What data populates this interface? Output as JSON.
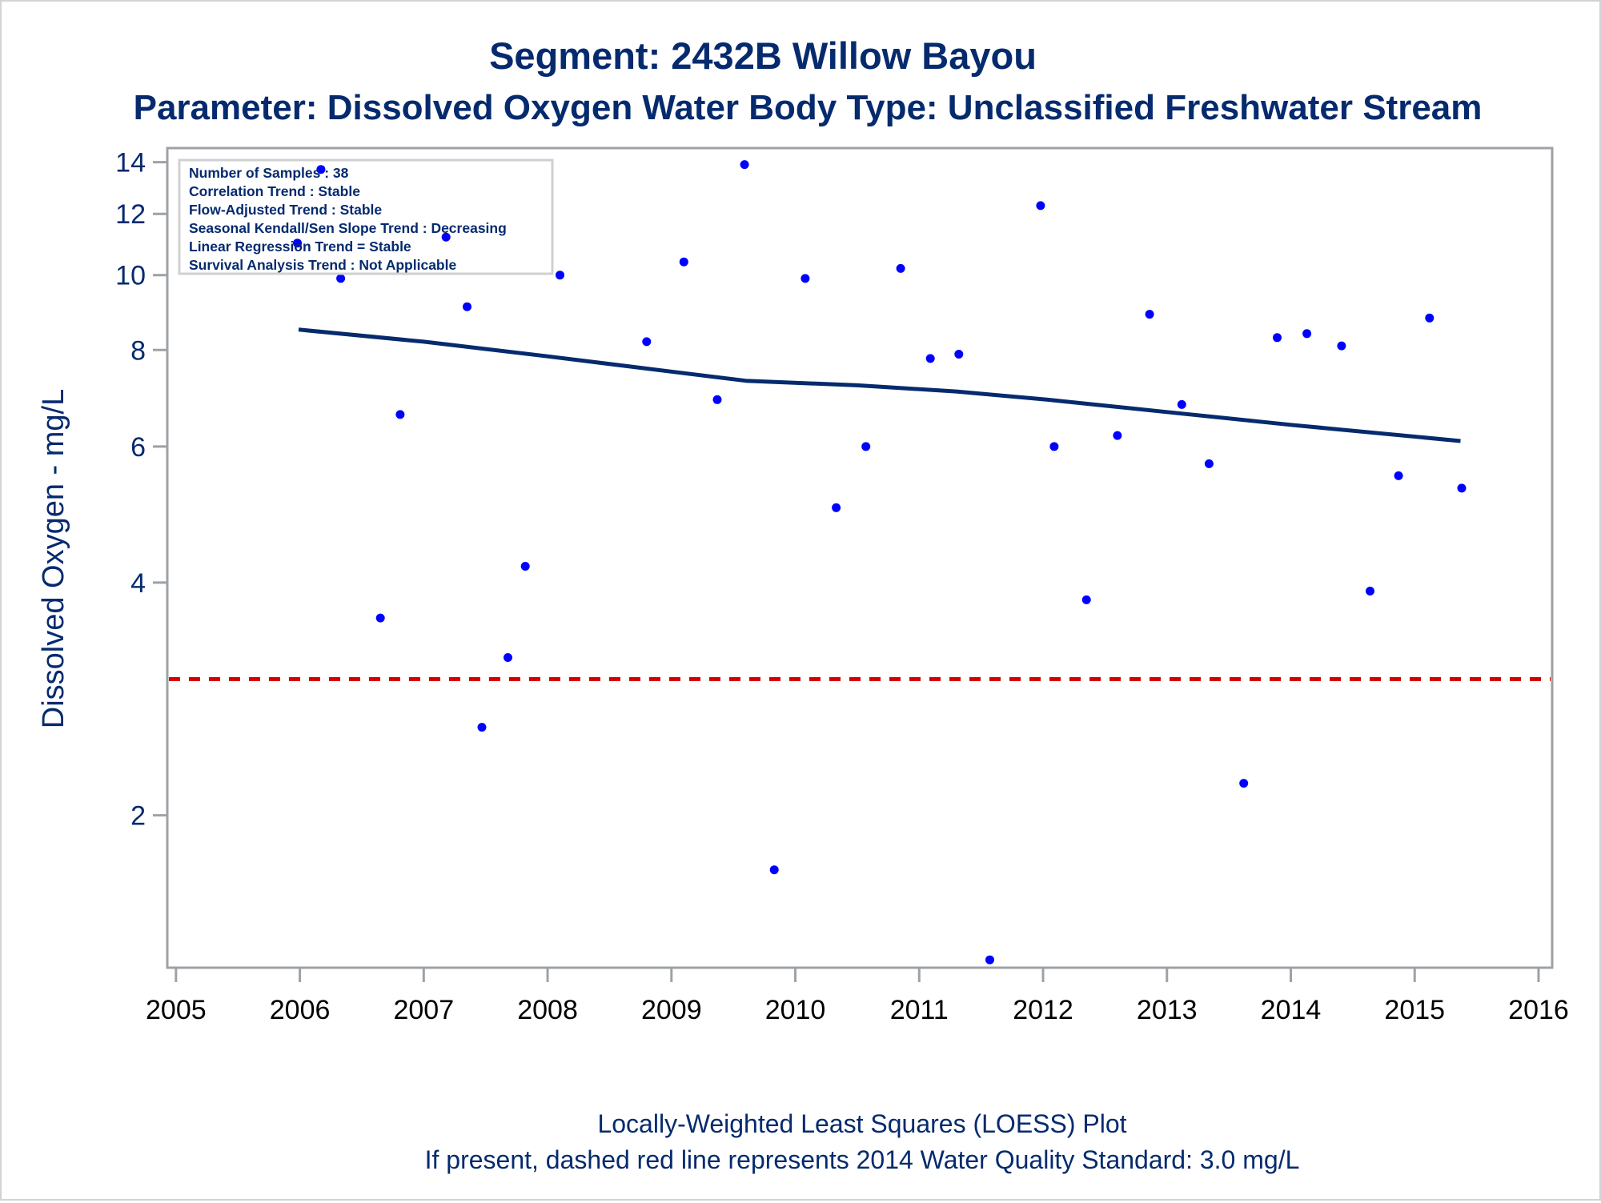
{
  "chart_data": {
    "type": "scatter",
    "title": "Segment: 2432B  Willow Bayou",
    "subtitle": "Parameter: Dissolved Oxygen   Water Body Type: Unclassified Freshwater Stream",
    "xlabel": "",
    "ylabel": "Dissolved Oxygen - mg/L",
    "yscale": "log",
    "xlim": [
      2004.93,
      2016.11
    ],
    "ylim": [
      1.27,
      14.6
    ],
    "xticks": [
      "2005",
      "2006",
      "2007",
      "2008",
      "2009",
      "2010",
      "2011",
      "2012",
      "2013",
      "2014",
      "2015",
      "2016"
    ],
    "yticks": [
      "2",
      "4",
      "6",
      "8",
      "10",
      "12",
      "14"
    ],
    "grid": false,
    "series": [
      {
        "name": "Samples",
        "kind": "scatter",
        "color": "#0000ff",
        "x": [
          2005.98,
          2006.17,
          2006.33,
          2006.65,
          2006.81,
          2007.18,
          2007.35,
          2007.47,
          2007.68,
          2007.82,
          2008.1,
          2008.8,
          2009.1,
          2009.37,
          2009.59,
          2009.83,
          2010.08,
          2010.33,
          2010.57,
          2010.85,
          2011.09,
          2011.32,
          2011.57,
          2011.98,
          2012.09,
          2012.35,
          2012.6,
          2012.86,
          2013.12,
          2013.34,
          2013.62,
          2013.89,
          2014.13,
          2014.41,
          2014.64,
          2014.87,
          2015.12,
          2015.38
        ],
        "y": [
          11.0,
          13.7,
          9.9,
          3.6,
          6.6,
          11.2,
          9.1,
          2.6,
          3.2,
          4.2,
          10.0,
          8.2,
          10.4,
          6.9,
          13.9,
          1.7,
          9.9,
          5.0,
          6.0,
          10.2,
          7.8,
          7.9,
          1.3,
          12.3,
          6.0,
          3.8,
          6.2,
          8.9,
          6.8,
          5.7,
          2.2,
          8.3,
          8.4,
          8.1,
          3.9,
          5.5,
          8.8,
          5.3
        ]
      },
      {
        "name": "LOESS",
        "kind": "line",
        "color": "#052a6e",
        "x": [
          2005.99,
          2007.0,
          2008.0,
          2009.0,
          2009.6,
          2010.5,
          2011.3,
          2012.03,
          2013.0,
          2014.0,
          2015.37
        ],
        "y": [
          8.5,
          8.2,
          7.85,
          7.5,
          7.3,
          7.2,
          7.07,
          6.9,
          6.65,
          6.4,
          6.1
        ]
      },
      {
        "name": "2014 Water Quality Standard",
        "kind": "hline",
        "color": "#d40000",
        "y": 3.0
      }
    ],
    "annotation_box": [
      "Number of Samples : 38",
      "Correlation Trend : Stable",
      "Flow-Adjusted Trend : Stable",
      "Seasonal Kendall/Sen Slope Trend : Decreasing",
      "Linear Regression Trend = Stable",
      "Survival Analysis Trend : Not Applicable"
    ],
    "footnotes": [
      "Locally-Weighted Least Squares (LOESS) Plot",
      "If present, dashed red line represents 2014 Water Quality Standard: 3.0 mg/L"
    ]
  },
  "colors": {
    "text": "#052a6e",
    "axis": "#9ea2a6",
    "points": "#0000ff",
    "loess": "#052a6e",
    "standard": "#d40000"
  }
}
